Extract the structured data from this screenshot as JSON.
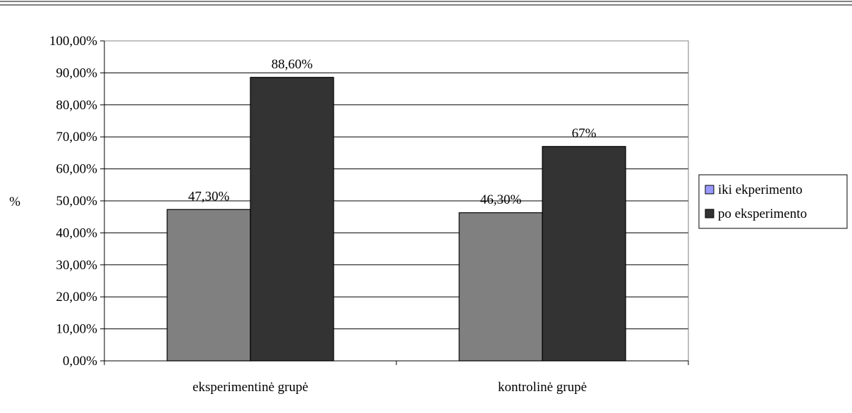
{
  "chart_data": {
    "type": "bar",
    "title": "",
    "xlabel": "",
    "ylabel": "%",
    "categories": [
      "eksperimentinė grupė",
      "kontrolinė grupė"
    ],
    "series": [
      {
        "name": "iki ekperimento",
        "values": [
          47.3,
          46.3
        ],
        "labels": [
          "47,30%",
          "46,30%"
        ],
        "color": "#808080",
        "legend_color": "#9999ff"
      },
      {
        "name": "po eksperimento",
        "values": [
          88.6,
          67.0
        ],
        "labels": [
          "88,60%",
          "67%"
        ],
        "color": "#333333",
        "legend_color": "#333333"
      }
    ],
    "ylim": [
      0,
      100
    ],
    "yticks": [
      0,
      10,
      20,
      30,
      40,
      50,
      60,
      70,
      80,
      90,
      100
    ],
    "ytick_labels": [
      "0,00%",
      "10,00%",
      "20,00%",
      "30,00%",
      "40,00%",
      "50,00%",
      "60,00%",
      "70,00%",
      "80,00%",
      "90,00%",
      "100,00%"
    ],
    "grid": true,
    "legend_position": "right"
  }
}
